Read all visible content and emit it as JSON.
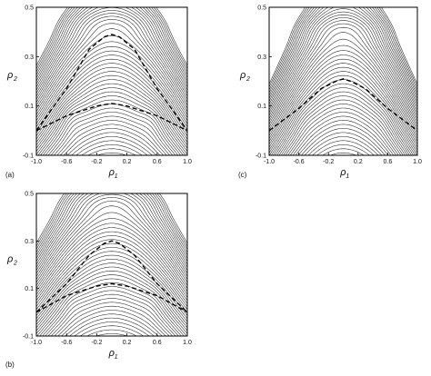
{
  "figure": {
    "panels": [
      {
        "id": "a",
        "tag": "(a)",
        "x_label": "ρ",
        "x_label_sub": "1",
        "y_label": "ρ",
        "y_label_sub": "2",
        "x_ticks": [
          "-1.0",
          "-0.6",
          "-0.2",
          "0.2",
          "0.6",
          "1.0"
        ],
        "y_ticks": [
          "0.5",
          "0.3",
          "0.1",
          "-0.1"
        ],
        "dashed_curves": [
          {
            "x": [
              -1.0,
              -0.6,
              -0.3,
              -0.1,
              0.0,
              0.1,
              0.3,
              0.6,
              1.0
            ],
            "y": [
              0.0,
              0.17,
              0.33,
              0.38,
              0.39,
              0.38,
              0.33,
              0.17,
              0.0
            ]
          },
          {
            "x": [
              -1.0,
              -0.6,
              -0.2,
              0.0,
              0.2,
              0.6,
              1.0
            ],
            "y": [
              0.0,
              0.06,
              0.1,
              0.11,
              0.1,
              0.06,
              0.0
            ]
          }
        ]
      },
      {
        "id": "b",
        "tag": "(b)",
        "x_label": "ρ",
        "x_label_sub": "1",
        "y_label": "ρ",
        "y_label_sub": "2",
        "x_ticks": [
          "-1.0",
          "-0.6",
          "-0.2",
          "0.2",
          "0.6",
          "1.0"
        ],
        "y_ticks": [
          "0.5",
          "0.3",
          "0.1",
          "-0.1"
        ],
        "dashed_curves": [
          {
            "x": [
              -1.0,
              -0.6,
              -0.3,
              -0.1,
              0.0,
              0.1,
              0.3,
              0.6,
              1.0
            ],
            "y": [
              0.0,
              0.12,
              0.24,
              0.29,
              0.3,
              0.29,
              0.24,
              0.12,
              0.0
            ]
          },
          {
            "x": [
              -1.0,
              -0.6,
              -0.2,
              0.0,
              0.2,
              0.6,
              1.0
            ],
            "y": [
              0.0,
              0.07,
              0.11,
              0.12,
              0.11,
              0.07,
              0.0
            ]
          }
        ]
      },
      {
        "id": "c",
        "tag": "(c)",
        "x_label": "ρ",
        "x_label_sub": "1",
        "y_label": "ρ",
        "y_label_sub": "2",
        "x_ticks": [
          "-1.0",
          "-0.6",
          "-0.2",
          "0.2",
          "0.6",
          "1.0"
        ],
        "y_ticks": [
          "0.5",
          "0.3",
          "0.1",
          "-0.1"
        ],
        "dashed_curves": [
          {
            "x": [
              -1.0,
              -0.6,
              -0.3,
              -0.1,
              0.0,
              0.1,
              0.3,
              0.6,
              1.0
            ],
            "y": [
              0.0,
              0.09,
              0.17,
              0.2,
              0.21,
              0.2,
              0.17,
              0.09,
              0.0
            ]
          }
        ]
      }
    ]
  },
  "chart_data": [
    {
      "type": "contour",
      "panel": "(a)",
      "xlim": [
        -1.0,
        1.0
      ],
      "ylim": [
        -0.1,
        0.5
      ],
      "x_ticks": [
        -1.0,
        -0.6,
        -0.2,
        0.2,
        0.6,
        1.0
      ],
      "y_ticks": [
        0.5,
        0.3,
        0.1,
        -0.1
      ],
      "dashed_curves": [
        {
          "x": [
            -1.0,
            -0.6,
            -0.3,
            -0.1,
            0.0,
            0.1,
            0.3,
            0.6,
            1.0
          ],
          "y": [
            0.0,
            0.17,
            0.33,
            0.38,
            0.39,
            0.38,
            0.33,
            0.17,
            0.0
          ]
        },
        {
          "x": [
            -1.0,
            -0.6,
            -0.2,
            0.0,
            0.2,
            0.6,
            1.0
          ],
          "y": [
            0.0,
            0.06,
            0.1,
            0.11,
            0.1,
            0.06,
            0.0
          ]
        }
      ]
    },
    {
      "type": "contour",
      "panel": "(b)",
      "xlim": [
        -1.0,
        1.0
      ],
      "ylim": [
        -0.1,
        0.5
      ],
      "x_ticks": [
        -1.0,
        -0.6,
        -0.2,
        0.2,
        0.6,
        1.0
      ],
      "y_ticks": [
        0.5,
        0.3,
        0.1,
        -0.1
      ],
      "dashed_curves": [
        {
          "x": [
            -1.0,
            -0.6,
            -0.3,
            -0.1,
            0.0,
            0.1,
            0.3,
            0.6,
            1.0
          ],
          "y": [
            0.0,
            0.12,
            0.24,
            0.29,
            0.3,
            0.29,
            0.24,
            0.12,
            0.0
          ]
        },
        {
          "x": [
            -1.0,
            -0.6,
            -0.2,
            0.0,
            0.2,
            0.6,
            1.0
          ],
          "y": [
            0.0,
            0.07,
            0.11,
            0.12,
            0.11,
            0.07,
            0.0
          ]
        }
      ]
    },
    {
      "type": "contour",
      "panel": "(c)",
      "xlim": [
        -1.0,
        1.0
      ],
      "ylim": [
        -0.1,
        0.5
      ],
      "x_ticks": [
        -1.0,
        -0.6,
        -0.2,
        0.2,
        0.6,
        1.0
      ],
      "y_ticks": [
        0.5,
        0.3,
        0.1,
        -0.1
      ],
      "dashed_curves": [
        {
          "x": [
            -1.0,
            -0.6,
            -0.3,
            -0.1,
            0.0,
            0.1,
            0.3,
            0.6,
            1.0
          ],
          "y": [
            0.0,
            0.09,
            0.17,
            0.2,
            0.21,
            0.2,
            0.17,
            0.09,
            0.0
          ]
        }
      ]
    }
  ]
}
